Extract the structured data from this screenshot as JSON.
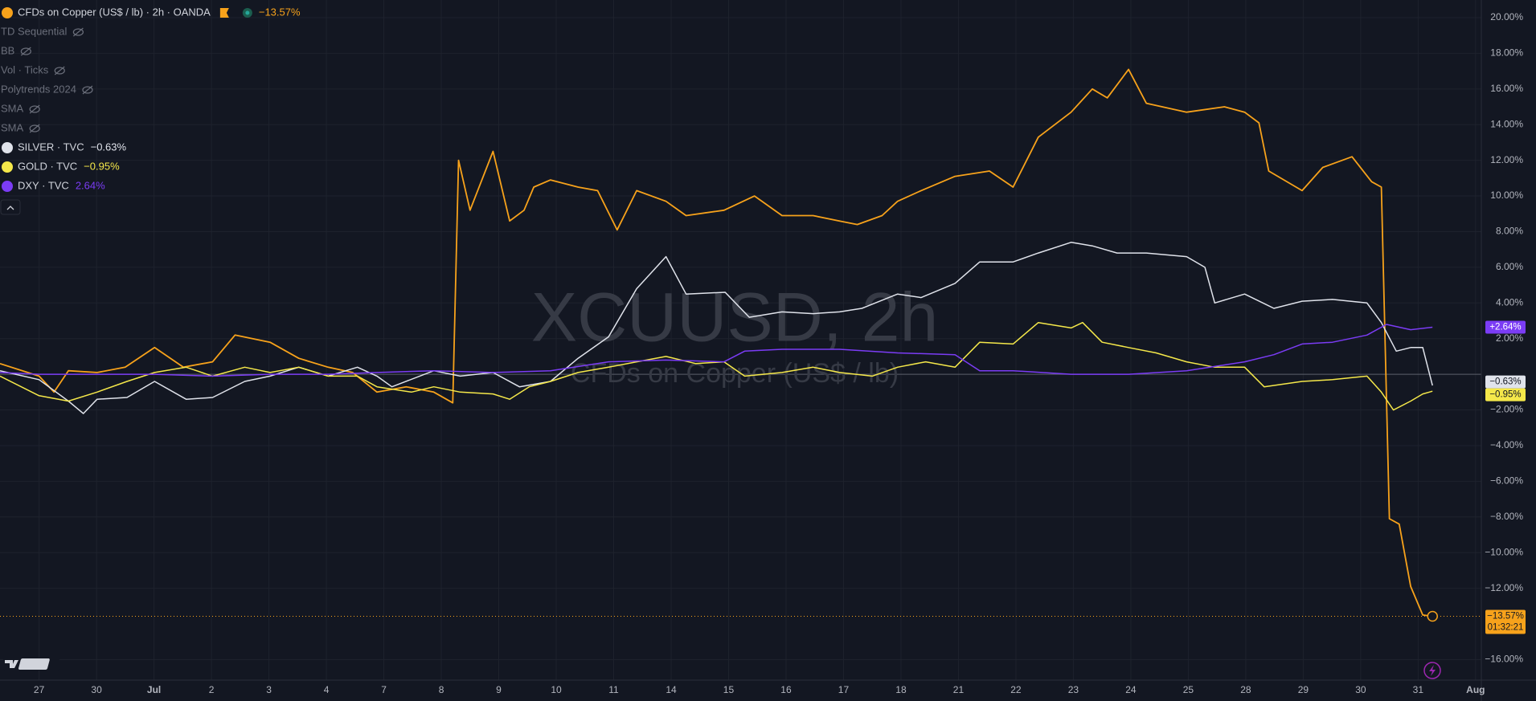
{
  "chart_data": {
    "type": "line",
    "title": "CFDs on Copper (US$ / lb) · 2h · OANDA",
    "watermark": {
      "symbol": "XCUUSD, 2h",
      "description": "CFDs on Copper (US$ / lb)"
    },
    "indicators": [
      "TD Sequential",
      "BB",
      "Vol · Ticks",
      "Polytrends 2024",
      "SMA",
      "SMA"
    ],
    "countdown": "01:32:21",
    "xlim": [
      -0.68,
      25.1
    ],
    "xticks": [
      {
        "value": 0,
        "label": "27"
      },
      {
        "value": 1,
        "label": "30"
      },
      {
        "value": 2,
        "label": "Jul"
      },
      {
        "value": 3,
        "label": "2"
      },
      {
        "value": 4,
        "label": "3"
      },
      {
        "value": 5,
        "label": "4"
      },
      {
        "value": 6,
        "label": "7"
      },
      {
        "value": 7,
        "label": "8"
      },
      {
        "value": 8,
        "label": "9"
      },
      {
        "value": 9,
        "label": "10"
      },
      {
        "value": 10,
        "label": "11"
      },
      {
        "value": 11,
        "label": "14"
      },
      {
        "value": 12,
        "label": "15"
      },
      {
        "value": 13,
        "label": "16"
      },
      {
        "value": 14,
        "label": "17"
      },
      {
        "value": 15,
        "label": "18"
      },
      {
        "value": 16,
        "label": "21"
      },
      {
        "value": 17,
        "label": "22"
      },
      {
        "value": 18,
        "label": "23"
      },
      {
        "value": 19,
        "label": "24"
      },
      {
        "value": 20,
        "label": "25"
      },
      {
        "value": 21,
        "label": "28"
      },
      {
        "value": 22,
        "label": "29"
      },
      {
        "value": 23,
        "label": "30"
      },
      {
        "value": 24,
        "label": "31"
      },
      {
        "value": 25,
        "label": "Aug"
      }
    ],
    "ylim": [
      -17.15,
      20.99
    ],
    "yticks": [
      {
        "value": 20,
        "label": "20.00%"
      },
      {
        "value": 18,
        "label": "18.00%"
      },
      {
        "value": 16,
        "label": "16.00%"
      },
      {
        "value": 14,
        "label": "14.00%"
      },
      {
        "value": 12,
        "label": "12.00%"
      },
      {
        "value": 10,
        "label": "10.00%"
      },
      {
        "value": 8,
        "label": "8.00%"
      },
      {
        "value": 6,
        "label": "6.00%"
      },
      {
        "value": 4,
        "label": "4.00%"
      },
      {
        "value": 2,
        "label": "2.00%"
      },
      {
        "value": -2,
        "label": "−2.00%"
      },
      {
        "value": -4,
        "label": "−4.00%"
      },
      {
        "value": -6,
        "label": "−6.00%"
      },
      {
        "value": -8,
        "label": "−8.00%"
      },
      {
        "value": -10,
        "label": "−10.00%"
      },
      {
        "value": -12,
        "label": "−12.00%"
      },
      {
        "value": -16,
        "label": "−16.00%"
      }
    ],
    "grid": true,
    "series": [
      {
        "name": "CFDs on Copper (US$ / lb)",
        "color": "#f7a21b",
        "legend_label": "−13.57%",
        "axis_label": "−13.57%",
        "x": [
          -0.68,
          0,
          0.26,
          0.51,
          1.01,
          1.5,
          2.01,
          2.51,
          3.02,
          3.41,
          4.02,
          4.52,
          5.03,
          5.46,
          5.88,
          6.39,
          6.87,
          7.2,
          7.3,
          7.5,
          7.9,
          8.19,
          8.44,
          8.61,
          8.9,
          9.38,
          9.72,
          10.06,
          10.4,
          10.91,
          11.26,
          11.92,
          12.45,
          12.93,
          13.47,
          13.93,
          14.24,
          14.67,
          14.94,
          15.35,
          15.94,
          16.54,
          16.95,
          17.39,
          17.96,
          18.33,
          18.59,
          18.96,
          19.27,
          19.97,
          20.63,
          20.98,
          21.23,
          21.4,
          21.98,
          22.34,
          22.85,
          23.19,
          23.36,
          23.5,
          23.67,
          23.87,
          24.08,
          24.25
        ],
        "values": [
          0.6,
          -0.1,
          -1.0,
          0.2,
          0.1,
          0.4,
          1.5,
          0.4,
          0.7,
          2.2,
          1.8,
          0.9,
          0.4,
          0.1,
          -1.0,
          -0.7,
          -1.0,
          -1.6,
          12.0,
          9.2,
          12.5,
          8.6,
          9.2,
          10.5,
          10.9,
          10.5,
          10.3,
          8.1,
          10.3,
          9.7,
          8.9,
          9.2,
          10.0,
          8.9,
          8.9,
          8.6,
          8.4,
          8.9,
          9.7,
          10.3,
          11.1,
          11.4,
          10.5,
          13.3,
          14.7,
          16.0,
          15.5,
          17.1,
          15.2,
          14.7,
          15.0,
          14.7,
          14.1,
          11.4,
          10.3,
          11.6,
          12.2,
          10.8,
          10.5,
          -8.1,
          -8.4,
          -11.9,
          -13.5,
          -13.57
        ]
      },
      {
        "name": "SILVER · TVC",
        "color": "#e0e3eb",
        "legend_label": "−0.63%",
        "axis_label": "−0.63%",
        "x": [
          -0.68,
          0,
          0.51,
          0.77,
          1.01,
          1.53,
          2.01,
          2.56,
          3.02,
          3.58,
          4.02,
          4.52,
          5.03,
          5.54,
          5.88,
          6.14,
          6.87,
          7.33,
          7.9,
          8.36,
          8.9,
          9.38,
          9.91,
          10.4,
          10.91,
          11.26,
          11.94,
          12.36,
          12.93,
          13.47,
          13.93,
          14.32,
          14.94,
          15.35,
          15.94,
          16.37,
          16.95,
          17.39,
          17.96,
          18.33,
          18.76,
          19.27,
          19.97,
          20.29,
          20.46,
          20.98,
          21.49,
          21.98,
          22.51,
          23.11,
          23.36,
          23.62,
          23.87,
          24.08,
          24.25
        ],
        "values": [
          0.2,
          -0.3,
          -1.5,
          -2.2,
          -1.4,
          -1.3,
          -0.4,
          -1.4,
          -1.3,
          -0.4,
          -0.1,
          0.4,
          -0.1,
          0.4,
          -0.1,
          -0.7,
          0.2,
          -0.1,
          0.1,
          -0.7,
          -0.4,
          0.9,
          2.1,
          4.8,
          6.6,
          4.5,
          4.6,
          3.2,
          3.5,
          3.4,
          3.5,
          3.7,
          4.5,
          4.3,
          5.1,
          6.3,
          6.3,
          6.8,
          7.4,
          7.2,
          6.8,
          6.8,
          6.6,
          6.0,
          4.0,
          4.5,
          3.7,
          4.1,
          4.2,
          4.0,
          2.9,
          1.3,
          1.5,
          1.5,
          -0.63
        ]
      },
      {
        "name": "GOLD · TVC",
        "color": "#f5e84a",
        "legend_label": "−0.95%",
        "axis_label": "−0.95%",
        "x": [
          -0.68,
          0,
          0.51,
          1.01,
          1.53,
          2.01,
          2.56,
          3.02,
          3.58,
          4.02,
          4.52,
          5.03,
          5.54,
          5.88,
          6.48,
          6.87,
          7.33,
          7.9,
          8.19,
          8.53,
          8.9,
          9.38,
          9.91,
          10.4,
          10.91,
          11.43,
          11.92,
          12.28,
          12.93,
          13.47,
          13.93,
          14.5,
          14.94,
          15.43,
          15.94,
          16.37,
          16.95,
          17.39,
          17.96,
          18.16,
          18.5,
          18.96,
          19.44,
          19.97,
          20.46,
          20.98,
          21.32,
          21.98,
          22.51,
          23.11,
          23.36,
          23.57,
          23.87,
          24.08,
          24.25
        ],
        "values": [
          -0.1,
          -1.2,
          -1.5,
          -1.0,
          -0.4,
          0.1,
          0.4,
          -0.1,
          0.4,
          0.1,
          0.4,
          -0.1,
          -0.1,
          -0.7,
          -1.0,
          -0.7,
          -1.0,
          -1.1,
          -1.4,
          -0.7,
          -0.4,
          0.1,
          0.4,
          0.7,
          1.0,
          0.6,
          0.7,
          -0.1,
          0.1,
          0.4,
          0.1,
          -0.1,
          0.4,
          0.7,
          0.4,
          1.8,
          1.7,
          2.9,
          2.6,
          2.9,
          1.8,
          1.5,
          1.2,
          0.7,
          0.4,
          0.4,
          -0.7,
          -0.4,
          -0.3,
          -0.1,
          -1.0,
          -2.0,
          -1.5,
          -1.1,
          -0.95
        ]
      },
      {
        "name": "DXY · TVC",
        "color": "#7b3cf5",
        "legend_label": "2.64%",
        "axis_label": "+2.64%",
        "x": [
          -0.68,
          0,
          1.01,
          2.01,
          3.02,
          4.02,
          5.03,
          5.88,
          6.87,
          7.9,
          8.9,
          9.91,
          10.91,
          11.92,
          12.28,
          12.93,
          13.93,
          14.94,
          15.94,
          16.37,
          16.95,
          17.96,
          18.96,
          19.97,
          20.98,
          21.49,
          21.98,
          22.51,
          23.11,
          23.45,
          23.87,
          24.25
        ],
        "values": [
          0.1,
          0.0,
          0.0,
          0.0,
          -0.1,
          0.0,
          0.0,
          0.1,
          0.2,
          0.1,
          0.2,
          0.7,
          0.8,
          0.7,
          1.3,
          1.4,
          1.4,
          1.2,
          1.1,
          0.2,
          0.2,
          0.0,
          0.0,
          0.2,
          0.7,
          1.1,
          1.7,
          1.8,
          2.2,
          2.8,
          2.5,
          2.64
        ]
      }
    ]
  }
}
